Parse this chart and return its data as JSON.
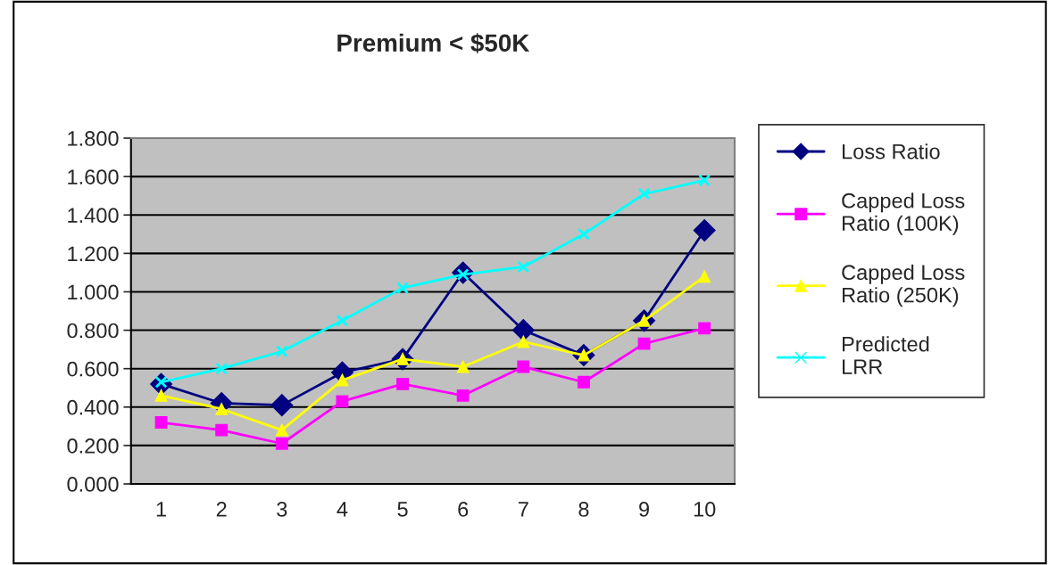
{
  "chart_data": {
    "type": "line",
    "title": "Premium < $50K",
    "categories": [
      "1",
      "2",
      "3",
      "4",
      "5",
      "6",
      "7",
      "8",
      "9",
      "10"
    ],
    "series": [
      {
        "name": "Loss Ratio",
        "color": "#000080",
        "marker": "diamond",
        "values": [
          0.52,
          0.42,
          0.41,
          0.58,
          0.65,
          1.1,
          0.8,
          0.67,
          0.85,
          1.32
        ]
      },
      {
        "name": "Capped Loss Ratio (100K)",
        "color": "#ff00ff",
        "marker": "square",
        "values": [
          0.32,
          0.28,
          0.21,
          0.43,
          0.52,
          0.46,
          0.61,
          0.53,
          0.73,
          0.81
        ]
      },
      {
        "name": "Capped Loss Ratio (250K)",
        "color": "#ffff00",
        "marker": "triangle",
        "values": [
          0.46,
          0.39,
          0.28,
          0.54,
          0.65,
          0.61,
          0.74,
          0.67,
          0.85,
          1.08
        ]
      },
      {
        "name": "Predicted LRR",
        "color": "#00ffff",
        "marker": "cross",
        "values": [
          0.53,
          0.6,
          0.69,
          0.85,
          1.02,
          1.09,
          1.13,
          1.3,
          1.51,
          1.58
        ]
      }
    ],
    "ylim": [
      0,
      1.8
    ],
    "yticks": [
      {
        "value": 0,
        "label": "0.000"
      },
      {
        "value": 0.2,
        "label": "0.200"
      },
      {
        "value": 0.4,
        "label": "0.400"
      },
      {
        "value": 0.6,
        "label": "0.600"
      },
      {
        "value": 0.8,
        "label": "0.800"
      },
      {
        "value": 1.0,
        "label": "1.000"
      },
      {
        "value": 1.2,
        "label": "1.200"
      },
      {
        "value": 1.4,
        "label": "1.400"
      },
      {
        "value": 1.6,
        "label": "1.600"
      },
      {
        "value": 1.8,
        "label": "1.800"
      }
    ],
    "grid": "y",
    "legend": "right",
    "line_style": "solid"
  }
}
